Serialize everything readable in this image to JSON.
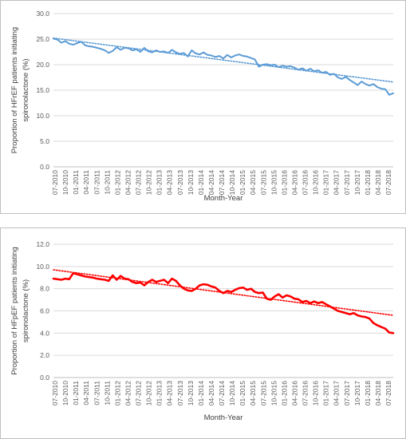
{
  "chart_data": [
    {
      "type": "line",
      "xlabel": "Month-Year",
      "ylabel_lines": [
        "Proportion of HFrEF patients initiating",
        "spironolactone (%)"
      ],
      "ylim": [
        0,
        30
      ],
      "y_tick_labels": [
        "0.0",
        "5.0",
        "10.0",
        "15.0",
        "20.0",
        "25.0",
        "30.0"
      ],
      "x_tick_labels": [
        "07-2010",
        "10-2010",
        "01-2011",
        "04-2011",
        "07-2011",
        "10-2011",
        "01-2012",
        "04-2012",
        "07-2012",
        "10-2012",
        "01-2013",
        "04-2013",
        "07-2013",
        "10-2013",
        "01-2014",
        "04-2014",
        "07-2014",
        "10-2014",
        "01-2015",
        "04-2015",
        "07-2015",
        "10-2015",
        "01-2016",
        "04-2016",
        "07-2016",
        "10-2016",
        "01-2017",
        "04-2017",
        "07-2017",
        "10-2017",
        "01-2018",
        "04-2018",
        "07-2018"
      ],
      "series_color": "#5b9bd5",
      "trendline": {
        "style": "dotted",
        "start": 25.2,
        "end": 16.6
      },
      "series": [
        {
          "values": [
            25.1,
            24.9,
            24.3,
            24.6,
            24.1,
            23.9,
            24.2,
            24.5,
            23.8,
            23.6,
            23.5,
            23.3,
            23.1,
            22.8,
            22.3,
            22.7,
            23.4,
            22.9,
            23.3,
            23.2,
            22.8,
            23.0,
            22.5,
            23.3,
            22.6,
            22.4,
            22.8,
            22.5,
            22.6,
            22.3,
            22.9,
            22.4,
            22.1,
            22.3,
            21.6,
            22.8,
            22.2,
            22.0,
            22.4,
            21.9,
            21.8,
            21.5,
            21.7,
            21.2,
            21.9,
            21.4,
            21.8,
            22.0,
            21.7,
            21.6,
            21.3,
            21.0,
            19.6,
            20.0,
            20.1,
            19.9,
            20.0,
            19.5,
            19.8,
            19.6,
            19.7,
            19.4,
            19.0,
            19.3,
            18.8,
            19.2,
            18.7,
            18.9,
            18.4,
            18.6,
            18.0,
            18.2,
            17.5,
            17.2,
            17.6,
            17.0,
            16.5,
            16.0,
            16.7,
            16.2,
            15.9,
            16.2,
            15.6,
            15.3,
            15.2,
            14.1,
            14.4
          ]
        }
      ]
    },
    {
      "type": "line",
      "xlabel": "Month-Year",
      "ylabel_lines": [
        "Proportion of HFpEF patients initiating",
        "spironolactone (%)"
      ],
      "ylim": [
        0,
        12
      ],
      "y_tick_labels": [
        "0.0",
        "2.0",
        "4.0",
        "6.0",
        "8.0",
        "10.0",
        "12.0"
      ],
      "x_tick_labels": [
        "07-2010",
        "10-2010",
        "01-2011",
        "04-2011",
        "07-2011",
        "10-2011",
        "01-2012",
        "04-2012",
        "07-2012",
        "10-2012",
        "01-2013",
        "04-2013",
        "07-2013",
        "10-2013",
        "01-2014",
        "04-2014",
        "07-2014",
        "10-2014",
        "01-2015",
        "04-2015",
        "07-2015",
        "10-2015",
        "01-2016",
        "04-2016",
        "07-2016",
        "10-2016",
        "01-2017",
        "04-2017",
        "07-2017",
        "10-2017",
        "01-2018",
        "04-2018",
        "07-2018"
      ],
      "series_color": "#ff0000",
      "trendline": {
        "style": "dotted",
        "start": 9.7,
        "end": 5.6
      },
      "series": [
        {
          "values": [
            8.9,
            8.85,
            8.8,
            8.9,
            8.85,
            9.4,
            9.3,
            9.2,
            9.1,
            9.05,
            9.0,
            8.9,
            8.85,
            8.8,
            8.7,
            9.2,
            8.8,
            9.15,
            8.9,
            8.85,
            8.6,
            8.5,
            8.55,
            8.3,
            8.6,
            8.8,
            8.6,
            8.7,
            8.8,
            8.5,
            8.9,
            8.7,
            8.3,
            8.0,
            7.85,
            7.8,
            8.0,
            8.3,
            8.4,
            8.35,
            8.2,
            8.1,
            7.8,
            7.6,
            7.8,
            7.7,
            7.9,
            8.05,
            8.1,
            7.9,
            8.0,
            7.7,
            7.6,
            7.65,
            7.1,
            7.0,
            7.3,
            7.5,
            7.2,
            7.4,
            7.3,
            7.1,
            7.05,
            6.8,
            6.9,
            6.7,
            6.85,
            6.7,
            6.8,
            6.6,
            6.4,
            6.2,
            6.0,
            5.9,
            5.8,
            5.7,
            5.8,
            5.6,
            5.5,
            5.45,
            5.3,
            4.9,
            4.7,
            4.55,
            4.4,
            4.05,
            4.0
          ]
        }
      ]
    }
  ]
}
